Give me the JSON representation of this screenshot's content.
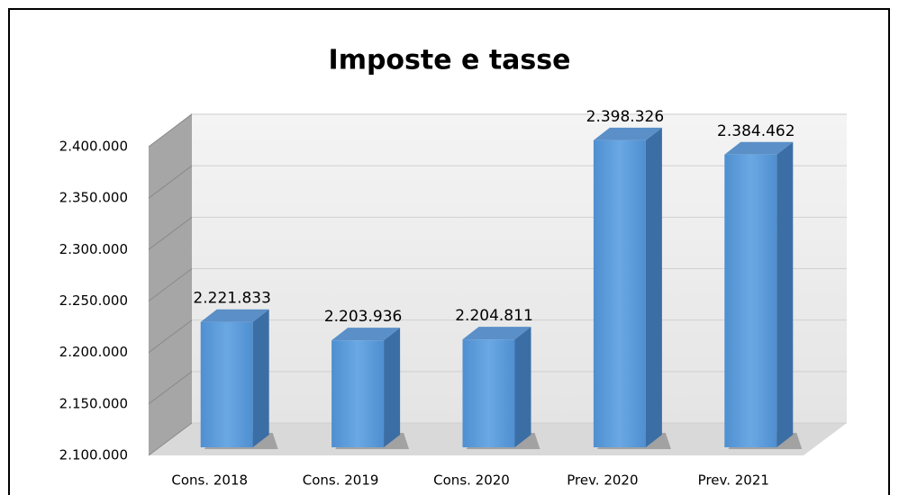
{
  "chart_data": {
    "type": "bar3d",
    "title": "Imposte e tasse",
    "categories": [
      "Cons. 2018",
      "Cons. 2019",
      "Cons. 2020",
      "Prev. 2020",
      "Prev. 2021"
    ],
    "values": [
      2221833,
      2203936,
      2204811,
      2398326,
      2384462
    ],
    "value_labels": [
      "2.221.833",
      "2.203.936",
      "2.204.811",
      "2.398.326",
      "2.384.462"
    ],
    "color": "#5b9bd5",
    "ylim": [
      2100000,
      2400000
    ],
    "yticks": [
      {
        "value": 2100000,
        "label": "2.100.000"
      },
      {
        "value": 2150000,
        "label": "2.150.000"
      },
      {
        "value": 2200000,
        "label": "2.200.000"
      },
      {
        "value": 2250000,
        "label": "2.250.000"
      },
      {
        "value": 2300000,
        "label": "2.300.000"
      },
      {
        "value": 2350000,
        "label": "2.350.000"
      },
      {
        "value": 2400000,
        "label": "2.400.000"
      }
    ],
    "grid": true
  }
}
